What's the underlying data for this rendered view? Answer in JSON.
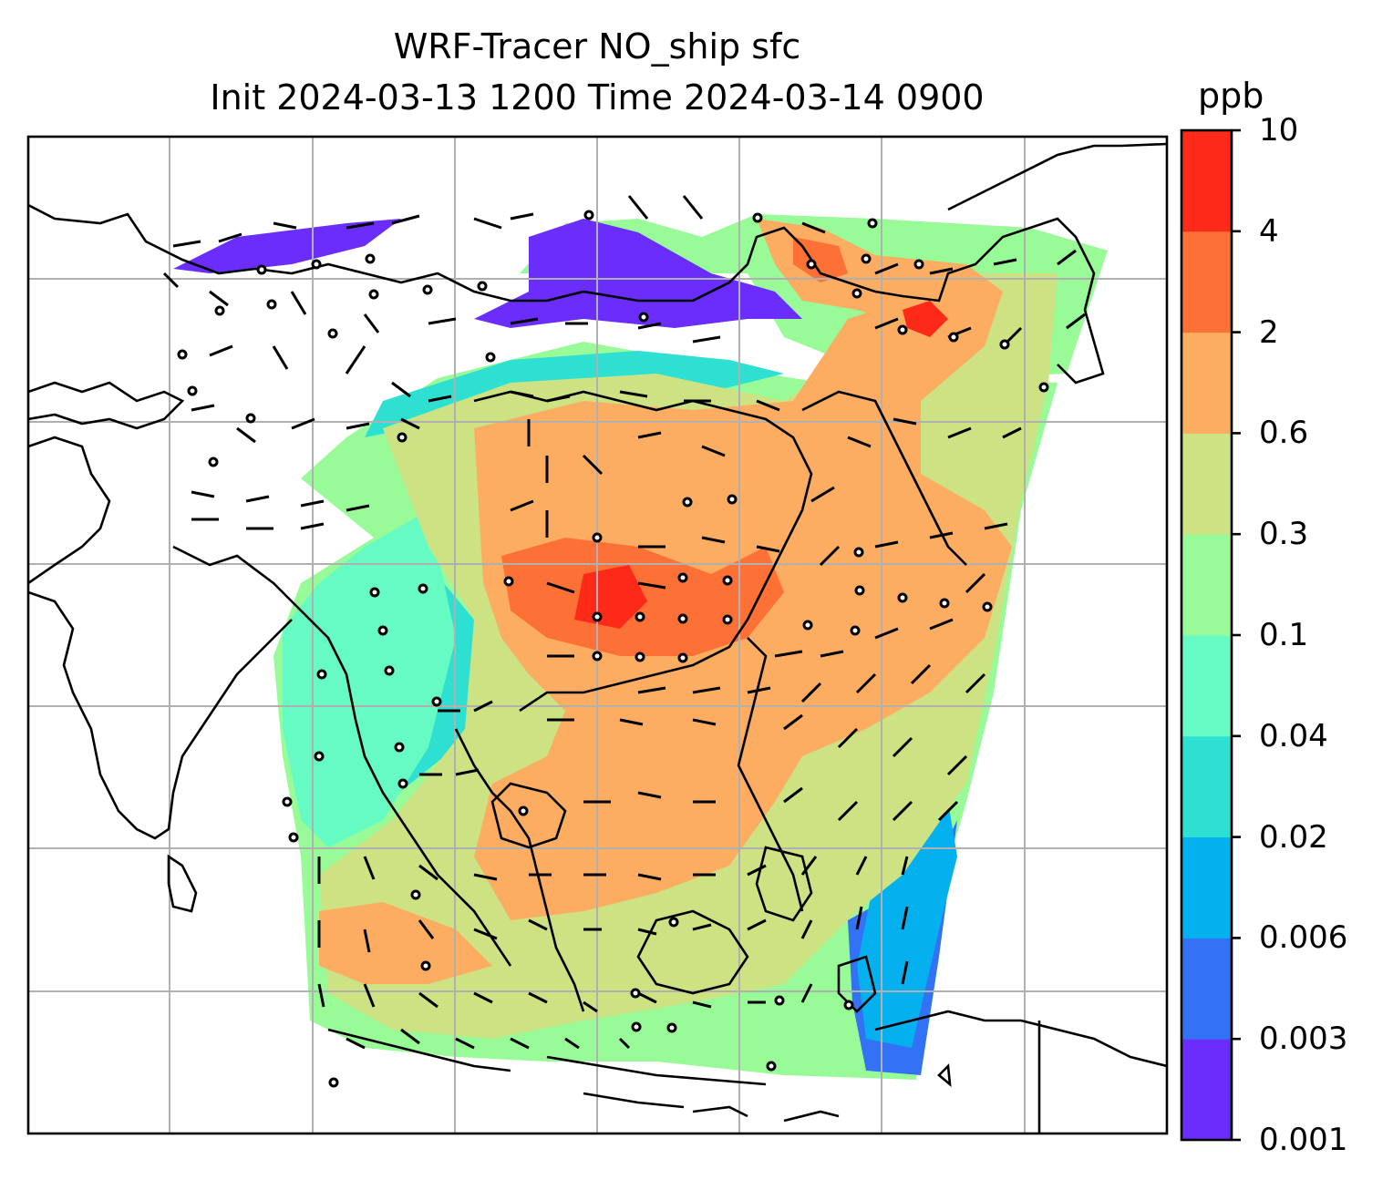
{
  "title_line1": "WRF-Tracer NO_ship sfc",
  "title_line2": "Init 2024-03-13 1200 Time 2024-03-14 0900",
  "colorbar": {
    "unit": "ppb",
    "levels": [
      "0.001",
      "0.003",
      "0.006",
      "0.02",
      "0.04",
      "0.1",
      "0.3",
      "0.6",
      "2",
      "4",
      "10"
    ],
    "colors": [
      "#6a2dfc",
      "#3372f4",
      "#05b0ee",
      "#2de0d2",
      "#66fbc2",
      "#98fb98",
      "#cce283",
      "#fcad62",
      "#fd7036",
      "#fd2a19"
    ]
  },
  "map": {
    "background": "#ffffff",
    "coastline_color": "#000000",
    "gridline_color": "#b0b0b0",
    "wind_barb_color": "#000000"
  }
}
